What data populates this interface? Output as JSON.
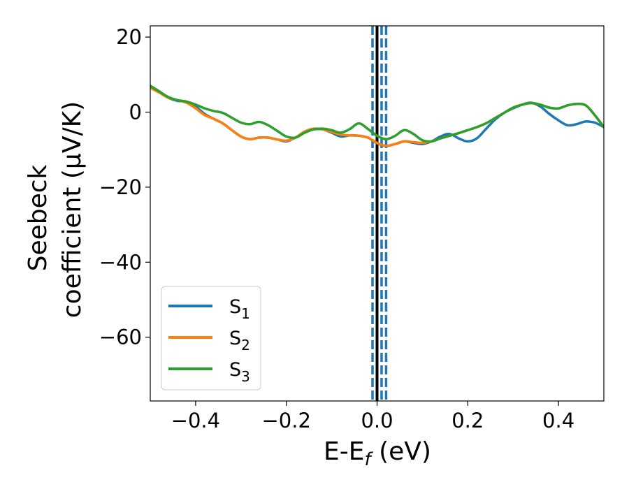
{
  "chart_data": {
    "type": "line",
    "xlabel": {
      "main": "E-E",
      "sub": "f",
      "unit": " (eV)"
    },
    "ylabel": {
      "line1": "Seebeck",
      "line2": "coefficient  (μV/K)"
    },
    "xlim": [
      -0.5,
      0.5
    ],
    "ylim": [
      -77,
      23
    ],
    "x_ticks": [
      -0.4,
      -0.2,
      0.0,
      0.2,
      0.4
    ],
    "x_tick_labels": [
      "−0.4",
      "−0.2",
      "0.0",
      "0.2",
      "0.4"
    ],
    "y_ticks": [
      20,
      0,
      -20,
      -40,
      -60
    ],
    "y_tick_labels": [
      "20",
      "0",
      "−20",
      "−40",
      "−60"
    ],
    "legend_position": "lower-left",
    "vlines": [
      {
        "x": 0.0,
        "style": "solid",
        "color": "#000000"
      },
      {
        "x": -0.01,
        "style": "dashed",
        "color": "#1f77b4"
      },
      {
        "x": 0.01,
        "style": "dashed",
        "color": "#1f77b4"
      },
      {
        "x": 0.02,
        "style": "dashed",
        "color": "#1f77b4"
      }
    ],
    "series": [
      {
        "name": "S",
        "sub": "1",
        "color": "#1f77b4",
        "points": [
          [
            -0.5,
            7
          ],
          [
            -0.48,
            5.5
          ],
          [
            -0.46,
            3.8
          ],
          [
            -0.44,
            3
          ],
          [
            -0.42,
            2.8
          ],
          [
            -0.4,
            1.5
          ],
          [
            -0.38,
            -0.5
          ],
          [
            -0.36,
            -1.8
          ],
          [
            -0.34,
            -3
          ],
          [
            -0.32,
            -4.8
          ],
          [
            -0.3,
            -6.5
          ],
          [
            -0.28,
            -7.2
          ],
          [
            -0.26,
            -6.8
          ],
          [
            -0.24,
            -6.8
          ],
          [
            -0.22,
            -7.3
          ],
          [
            -0.2,
            -7.8
          ],
          [
            -0.18,
            -6.8
          ],
          [
            -0.16,
            -5.5
          ],
          [
            -0.14,
            -4.6
          ],
          [
            -0.12,
            -4.6
          ],
          [
            -0.1,
            -5.5
          ],
          [
            -0.08,
            -6.5
          ],
          [
            -0.06,
            -6.2
          ],
          [
            -0.04,
            -6.3
          ],
          [
            -0.02,
            -6.8
          ],
          [
            0.0,
            -8.3
          ],
          [
            0.02,
            -9
          ],
          [
            0.04,
            -8.5
          ],
          [
            0.06,
            -7.8
          ],
          [
            0.08,
            -8.2
          ],
          [
            0.1,
            -8.5
          ],
          [
            0.12,
            -7.8
          ],
          [
            0.14,
            -6.5
          ],
          [
            0.16,
            -5.8
          ],
          [
            0.18,
            -7
          ],
          [
            0.2,
            -7.8
          ],
          [
            0.22,
            -7
          ],
          [
            0.24,
            -4.5
          ],
          [
            0.26,
            -2
          ],
          [
            0.28,
            -0.2
          ],
          [
            0.3,
            1
          ],
          [
            0.32,
            2
          ],
          [
            0.34,
            2.5
          ],
          [
            0.36,
            1.5
          ],
          [
            0.38,
            -0.5
          ],
          [
            0.4,
            -2.2
          ],
          [
            0.42,
            -3.5
          ],
          [
            0.44,
            -3.2
          ],
          [
            0.46,
            -2.5
          ],
          [
            0.48,
            -2.8
          ],
          [
            0.5,
            -4
          ]
        ]
      },
      {
        "name": "S",
        "sub": "2",
        "color": "#ff7f0e",
        "points": [
          [
            -0.5,
            6.5
          ],
          [
            -0.48,
            5.2
          ],
          [
            -0.46,
            3.8
          ],
          [
            -0.44,
            3.2
          ],
          [
            -0.42,
            2.5
          ],
          [
            -0.4,
            1
          ],
          [
            -0.38,
            -0.8
          ],
          [
            -0.36,
            -1.8
          ],
          [
            -0.34,
            -3
          ],
          [
            -0.32,
            -4.8
          ],
          [
            -0.3,
            -6.5
          ],
          [
            -0.28,
            -7.2
          ],
          [
            -0.26,
            -6.8
          ],
          [
            -0.24,
            -6.8
          ],
          [
            -0.22,
            -7.3
          ],
          [
            -0.2,
            -7.6
          ],
          [
            -0.18,
            -6.8
          ],
          [
            -0.16,
            -5.2
          ],
          [
            -0.14,
            -4.4
          ],
          [
            -0.12,
            -4.6
          ],
          [
            -0.1,
            -5.3
          ],
          [
            -0.08,
            -6
          ],
          [
            -0.06,
            -6.2
          ],
          [
            -0.04,
            -6.3
          ],
          [
            -0.02,
            -6.8
          ],
          [
            0.0,
            -8.2
          ],
          [
            0.02,
            -9
          ],
          [
            0.04,
            -8.5
          ],
          [
            0.06,
            -7.8
          ],
          [
            0.08,
            -8
          ],
          [
            0.1,
            -8.2
          ],
          [
            0.12,
            -7.8
          ],
          [
            0.14,
            -7
          ],
          [
            0.16,
            -6.3
          ],
          [
            0.18,
            -5.6
          ],
          [
            0.2,
            -4.8
          ],
          [
            0.22,
            -4
          ],
          [
            0.24,
            -3
          ],
          [
            0.26,
            -1.6
          ],
          [
            0.28,
            -0.2
          ],
          [
            0.3,
            1.2
          ],
          [
            0.32,
            2
          ],
          [
            0.34,
            2.4
          ],
          [
            0.36,
            2
          ],
          [
            0.38,
            1.2
          ],
          [
            0.4,
            1
          ],
          [
            0.42,
            1.8
          ],
          [
            0.44,
            2.2
          ],
          [
            0.46,
            1.8
          ],
          [
            0.48,
            -0.8
          ],
          [
            0.5,
            -4
          ]
        ]
      },
      {
        "name": "S",
        "sub": "3",
        "color": "#2ca02c",
        "points": [
          [
            -0.5,
            7
          ],
          [
            -0.48,
            5.5
          ],
          [
            -0.46,
            4
          ],
          [
            -0.44,
            3.2
          ],
          [
            -0.42,
            2.8
          ],
          [
            -0.4,
            2
          ],
          [
            -0.38,
            1
          ],
          [
            -0.36,
            0.3
          ],
          [
            -0.34,
            -0.2
          ],
          [
            -0.32,
            -1.5
          ],
          [
            -0.3,
            -2.8
          ],
          [
            -0.28,
            -3.2
          ],
          [
            -0.26,
            -2.6
          ],
          [
            -0.24,
            -3.5
          ],
          [
            -0.22,
            -5
          ],
          [
            -0.2,
            -6.5
          ],
          [
            -0.18,
            -6.8
          ],
          [
            -0.16,
            -5.5
          ],
          [
            -0.14,
            -4.6
          ],
          [
            -0.12,
            -4.4
          ],
          [
            -0.1,
            -4.8
          ],
          [
            -0.08,
            -5.5
          ],
          [
            -0.06,
            -4.5
          ],
          [
            -0.04,
            -3
          ],
          [
            -0.02,
            -4.5
          ],
          [
            0.0,
            -6.3
          ],
          [
            0.02,
            -7.2
          ],
          [
            0.04,
            -6.3
          ],
          [
            0.06,
            -4.8
          ],
          [
            0.08,
            -5.8
          ],
          [
            0.1,
            -7.5
          ],
          [
            0.12,
            -7.8
          ],
          [
            0.14,
            -7
          ],
          [
            0.16,
            -6.3
          ],
          [
            0.18,
            -5.6
          ],
          [
            0.2,
            -4.8
          ],
          [
            0.22,
            -4
          ],
          [
            0.24,
            -3
          ],
          [
            0.26,
            -1.6
          ],
          [
            0.28,
            -0.2
          ],
          [
            0.3,
            1.2
          ],
          [
            0.32,
            2
          ],
          [
            0.34,
            2.4
          ],
          [
            0.36,
            2
          ],
          [
            0.38,
            1.2
          ],
          [
            0.4,
            1
          ],
          [
            0.42,
            1.8
          ],
          [
            0.44,
            2.2
          ],
          [
            0.46,
            1.8
          ],
          [
            0.48,
            -0.8
          ],
          [
            0.5,
            -4
          ]
        ]
      }
    ]
  }
}
